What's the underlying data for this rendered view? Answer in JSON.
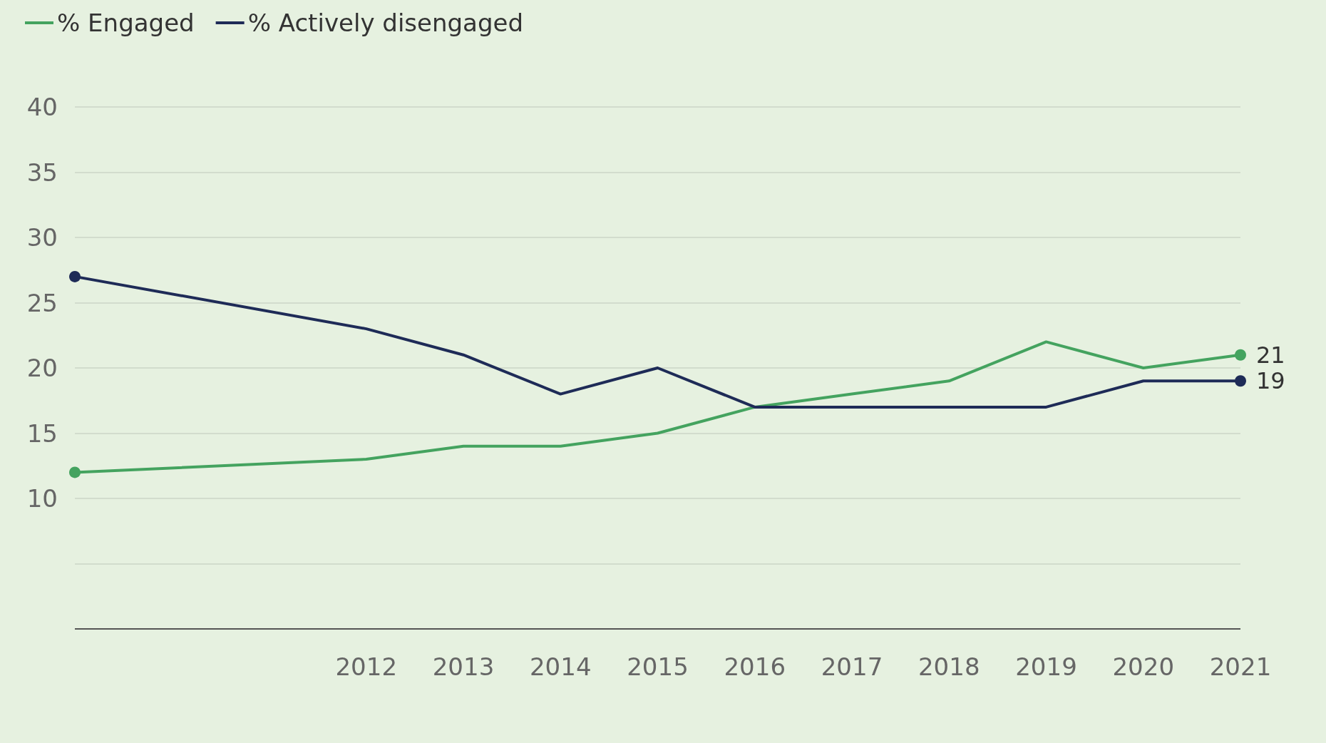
{
  "chart_data": {
    "type": "line",
    "x": [
      2009,
      2012,
      2013,
      2014,
      2015,
      2016,
      2017,
      2018,
      2019,
      2020,
      2021
    ],
    "series": [
      {
        "name": "% Engaged",
        "color": "#44a35f",
        "values": [
          12,
          13,
          14,
          14,
          15,
          17,
          18,
          19,
          22,
          20,
          21
        ],
        "value_labels": [
          null,
          null,
          null,
          null,
          null,
          null,
          null,
          null,
          null,
          null,
          "21"
        ]
      },
      {
        "name": "% Actively disengaged",
        "color": "#1e2b57",
        "values": [
          27,
          23,
          21,
          18,
          20,
          17,
          17,
          17,
          17,
          19,
          19
        ],
        "value_labels": [
          null,
          null,
          null,
          null,
          null,
          null,
          null,
          null,
          null,
          null,
          "19"
        ]
      }
    ],
    "xlim": [
      2009,
      2021
    ],
    "xticks": [
      2012,
      2013,
      2014,
      2015,
      2016,
      2017,
      2018,
      2019,
      2020,
      2021
    ],
    "ylim": [
      0,
      40
    ],
    "yticks": [
      {
        "value": 0,
        "label": null
      },
      {
        "value": 5,
        "label": null
      },
      10,
      15,
      20,
      25,
      30,
      35,
      40
    ],
    "grid": "y",
    "legend": "top left",
    "line_style": "solid"
  }
}
